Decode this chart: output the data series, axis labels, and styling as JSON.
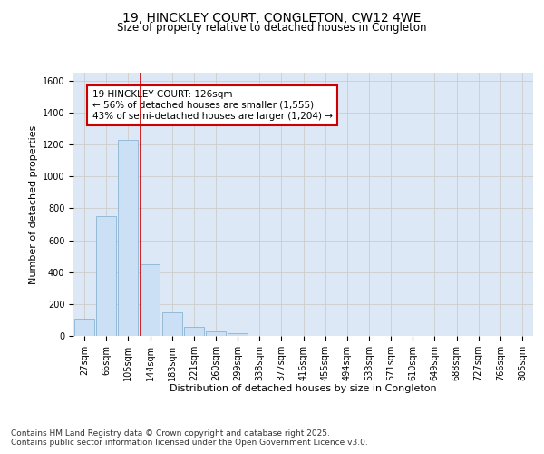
{
  "title_line1": "19, HINCKLEY COURT, CONGLETON, CW12 4WE",
  "title_line2": "Size of property relative to detached houses in Congleton",
  "xlabel": "Distribution of detached houses by size in Congleton",
  "ylabel": "Number of detached properties",
  "bar_labels": [
    "27sqm",
    "66sqm",
    "105sqm",
    "144sqm",
    "183sqm",
    "221sqm",
    "260sqm",
    "299sqm",
    "338sqm",
    "377sqm",
    "416sqm",
    "455sqm",
    "494sqm",
    "533sqm",
    "571sqm",
    "610sqm",
    "649sqm",
    "688sqm",
    "727sqm",
    "766sqm",
    "805sqm"
  ],
  "bar_values": [
    110,
    750,
    1230,
    450,
    150,
    55,
    30,
    15,
    0,
    0,
    0,
    0,
    0,
    0,
    0,
    0,
    0,
    0,
    0,
    0,
    0
  ],
  "bar_color": "#cce0f5",
  "bar_edge_color": "#8ab4d4",
  "vline_x": 2.55,
  "vline_color": "#cc0000",
  "annotation_text": "19 HINCKLEY COURT: 126sqm\n← 56% of detached houses are smaller (1,555)\n43% of semi-detached houses are larger (1,204) →",
  "annotation_box_color": "#cc0000",
  "annotation_bg": "#ffffff",
  "ylim": [
    0,
    1650
  ],
  "yticks": [
    0,
    200,
    400,
    600,
    800,
    1000,
    1200,
    1400,
    1600
  ],
  "grid_color": "#cccccc",
  "plot_bg_color": "#dce8f5",
  "fig_bg_color": "#ffffff",
  "footer_text": "Contains HM Land Registry data © Crown copyright and database right 2025.\nContains public sector information licensed under the Open Government Licence v3.0.",
  "title_fontsize": 10,
  "subtitle_fontsize": 8.5,
  "axis_label_fontsize": 8,
  "tick_fontsize": 7,
  "annotation_fontsize": 7.5,
  "footer_fontsize": 6.5
}
